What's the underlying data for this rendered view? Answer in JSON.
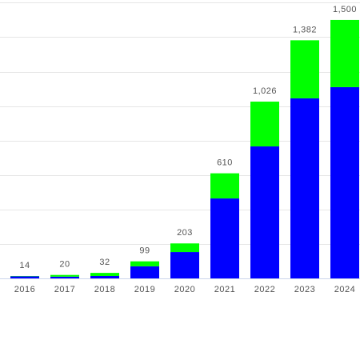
{
  "chart_data": {
    "type": "stacked_bar",
    "categories": [
      "2016",
      "2017",
      "2018",
      "2019",
      "2020",
      "2021",
      "2022",
      "2023",
      "2024"
    ],
    "series": [
      {
        "color": "#0000ff",
        "values": [
          12,
          10,
          14,
          70,
          153,
          464,
          766,
          1045,
          1110
        ]
      },
      {
        "color": "#00ff00",
        "values": [
          2,
          10,
          18,
          29,
          50,
          146,
          260,
          337,
          390
        ]
      }
    ],
    "totals": [
      14,
      20,
      32,
      99,
      203,
      610,
      1026,
      1382,
      1500
    ],
    "total_labels": [
      "14",
      "20",
      "32",
      "99",
      "203",
      "610",
      "1,026",
      "1,382",
      "1,500"
    ],
    "ylim": [
      0,
      1600
    ],
    "yticks": [
      0,
      200,
      400,
      600,
      800,
      1000,
      1200,
      1400,
      1600
    ],
    "grid": true
  }
}
